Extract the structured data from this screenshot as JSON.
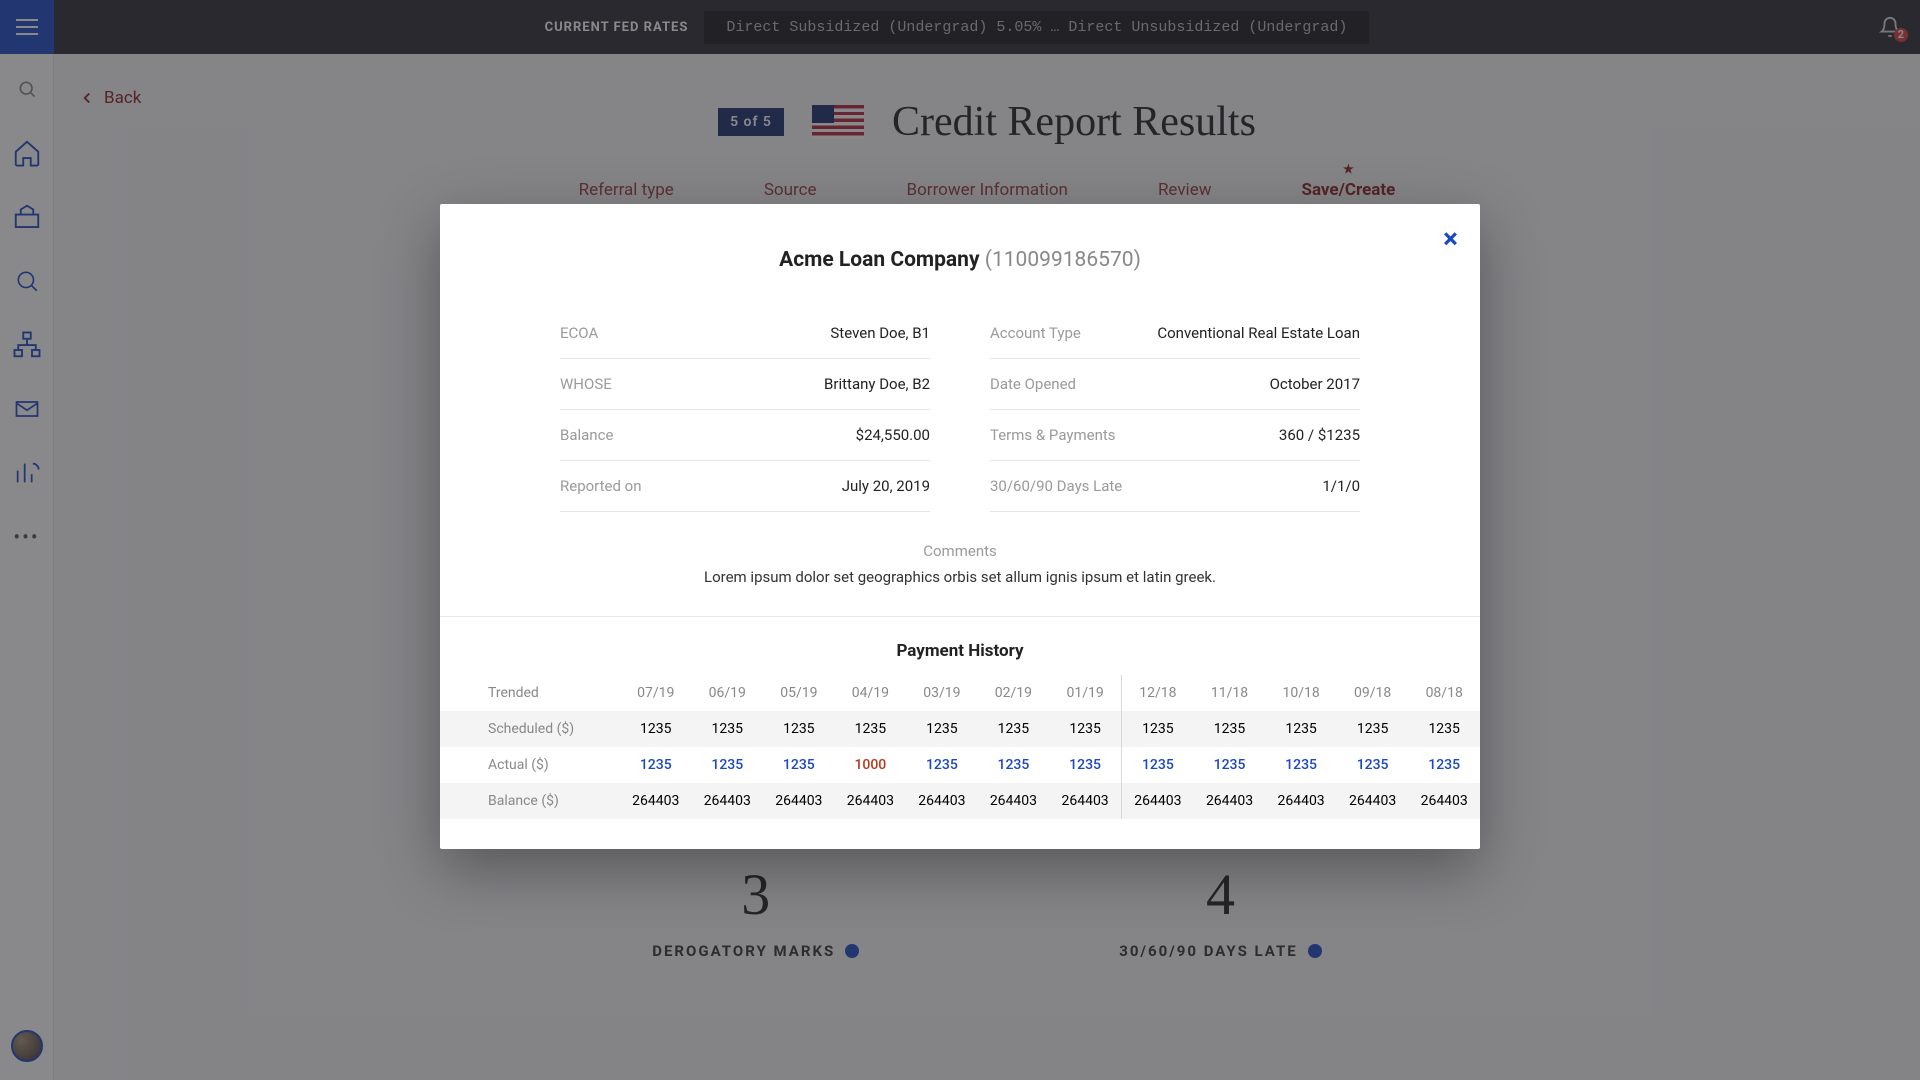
{
  "topbar": {
    "rates_label": "CURRENT FED RATES",
    "rates_text": "Direct Subsidized (Undergrad) 5.05% … Direct Unsubsidized (Undergrad)",
    "notif_count": "2"
  },
  "page": {
    "back_label": "Back",
    "step_chip": "5 of 5",
    "title": "Credit Report Results",
    "steps": [
      "Referral type",
      "Source",
      "Borrower Information",
      "Review",
      "Save/Create"
    ],
    "stats": [
      {
        "value": "3",
        "label": "DEROGATORY MARKS"
      },
      {
        "value": "4",
        "label": "30/60/90 DAYS LATE"
      }
    ]
  },
  "modal": {
    "company": "Acme Loan Company",
    "account_no": "(110099186570)",
    "left_kv": [
      {
        "k": "ECOA",
        "v": "Steven Doe, B1"
      },
      {
        "k": "WHOSE",
        "v": "Brittany Doe, B2"
      },
      {
        "k": "Balance",
        "v": "$24,550.00"
      },
      {
        "k": "Reported on",
        "v": "July 20, 2019"
      }
    ],
    "right_kv": [
      {
        "k": "Account Type",
        "v": "Conventional Real Estate Loan"
      },
      {
        "k": "Date Opened",
        "v": "October 2017"
      },
      {
        "k": "Terms & Payments",
        "v": "360 / $1235"
      },
      {
        "k": "30/60/90 Days Late",
        "v": "1/1/0"
      }
    ],
    "comments_label": "Comments",
    "comments_text": "Lorem ipsum dolor set geographics orbis set allum ignis ipsum et latin greek.",
    "payment_history_title": "Payment History",
    "ph_headers": [
      "Trended",
      "07/19",
      "06/19",
      "05/19",
      "04/19",
      "03/19",
      "02/19",
      "01/19",
      "12/18",
      "11/18",
      "10/18",
      "09/18",
      "08/18"
    ],
    "ph_rows": [
      {
        "label": "Scheduled ($)",
        "cells": [
          "1235",
          "1235",
          "1235",
          "1235",
          "1235",
          "1235",
          "1235",
          "1235",
          "1235",
          "1235",
          "1235",
          "1235"
        ],
        "cls": ""
      },
      {
        "label": "Actual ($)",
        "cells": [
          "1235",
          "1235",
          "1235",
          "1000",
          "1235",
          "1235",
          "1235",
          "1235",
          "1235",
          "1235",
          "1235",
          "1235"
        ],
        "cls": "actual",
        "bad_index": 3
      },
      {
        "label": "Balance ($)",
        "cells": [
          "264403",
          "264403",
          "264403",
          "264403",
          "264403",
          "264403",
          "264403",
          "264403",
          "264403",
          "264403",
          "264403",
          "264403"
        ],
        "cls": ""
      }
    ],
    "divider_after_col": 7
  },
  "colors": {
    "accent": "#1b48c3",
    "danger": "#b43a1f",
    "brand_red": "#8a2020"
  }
}
